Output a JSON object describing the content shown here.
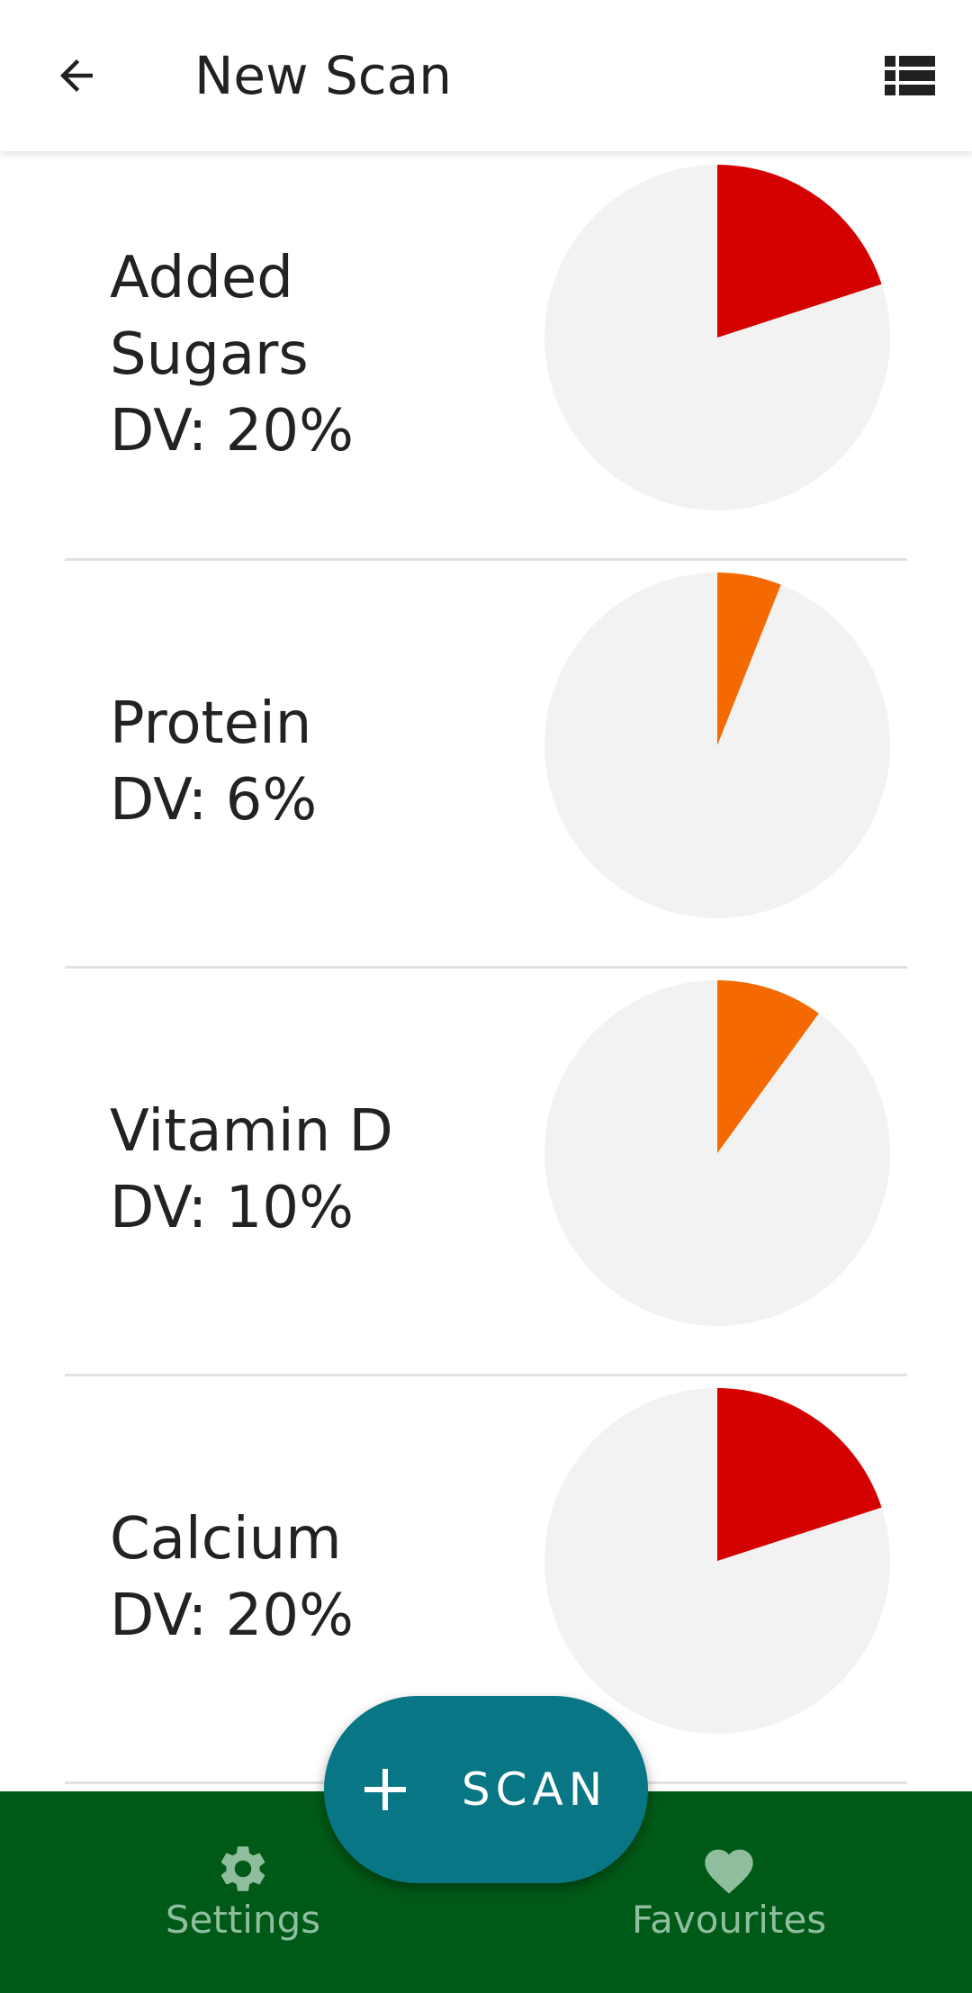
{
  "app_bar": {
    "title": "New Scan",
    "back_icon": "arrow-back-icon",
    "menu_icon": "view-list-icon"
  },
  "nutrients": [
    {
      "name": "Added Sugars",
      "dv_text": "DV: 20%",
      "dv_percent": 20,
      "color": "#d50000"
    },
    {
      "name": "Protein",
      "dv_text": "DV: 6%",
      "dv_percent": 6,
      "color": "#f46a00"
    },
    {
      "name": "Vitamin D",
      "dv_text": "DV: 10%",
      "dv_percent": 10,
      "color": "#f46a00"
    },
    {
      "name": "Calcium",
      "dv_text": "DV: 20%",
      "dv_percent": 20,
      "color": "#d50000"
    }
  ],
  "pie_background_color": "#f2f2f2",
  "fab": {
    "label": "SCAN",
    "icon": "plus-icon",
    "color": "#087684"
  },
  "bottom_nav": {
    "color": "#005a17",
    "items": [
      {
        "label": "Settings",
        "icon": "gear-icon"
      },
      {
        "label": "Favourites",
        "icon": "heart-icon"
      }
    ]
  }
}
